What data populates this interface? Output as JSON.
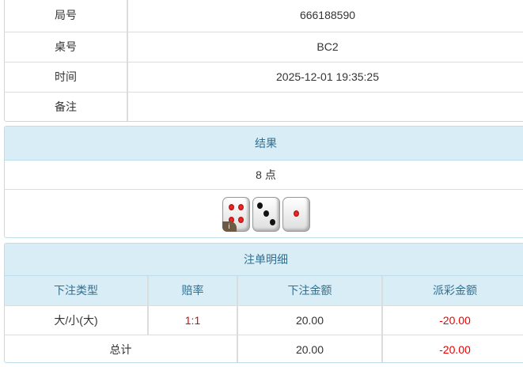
{
  "info": {
    "rows": [
      {
        "label": "局号",
        "value": "666188590"
      },
      {
        "label": "桌号",
        "value": "BC2"
      },
      {
        "label": "时间",
        "value": "2025-12-01 19:35:25"
      },
      {
        "label": "备注",
        "value": ""
      }
    ]
  },
  "result": {
    "title": "结果",
    "points": "8 点",
    "dice": [
      4,
      3,
      1
    ],
    "info_badge": "i"
  },
  "bets": {
    "title": "注单明细",
    "headers": [
      "下注类型",
      "赔率",
      "下注金额",
      "派彩金额"
    ],
    "rows": [
      {
        "type": "大/小(大)",
        "odds": "1:1",
        "amount": "20.00",
        "payout": "-20.00"
      }
    ],
    "total": {
      "label": "总计",
      "amount": "20.00",
      "payout": "-20.00"
    },
    "colors": {
      "negative": "#ee0000",
      "odds": "#ee0000"
    }
  }
}
